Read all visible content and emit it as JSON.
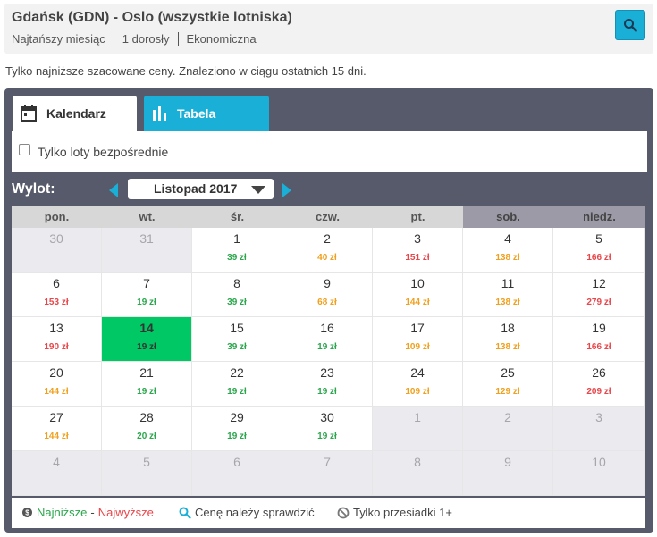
{
  "search": {
    "title": "Gdańsk (GDN) - Oslo (wszystkie lotniska)",
    "period": "Najtańszy miesiąc",
    "passengers": "1 dorosły",
    "cabin": "Ekonomiczna"
  },
  "note": "Tylko najniższe szacowane ceny. Znaleziono w ciągu ostatnich 15 dni.",
  "tabs": {
    "calendar": "Kalendarz",
    "table": "Tabela"
  },
  "filter": {
    "direct_only": "Tylko loty bezpośrednie",
    "checked": false
  },
  "departure_label": "Wylot:",
  "month": "Listopad 2017",
  "weekdays": [
    "pon.",
    "wt.",
    "śr.",
    "czw.",
    "pt.",
    "sob.",
    "niedz."
  ],
  "colors": {
    "low": "#2aa64c",
    "mid": "#f0a01e",
    "high": "#e8464a",
    "selected": "#00c864",
    "accent": "#1aafd6"
  },
  "days": [
    {
      "d": "30",
      "p": "",
      "level": "",
      "other": true
    },
    {
      "d": "31",
      "p": "",
      "level": "",
      "other": true
    },
    {
      "d": "1",
      "p": "39 zł",
      "level": "low"
    },
    {
      "d": "2",
      "p": "40 zł",
      "level": "mid"
    },
    {
      "d": "3",
      "p": "151 zł",
      "level": "high"
    },
    {
      "d": "4",
      "p": "138 zł",
      "level": "mid"
    },
    {
      "d": "5",
      "p": "166 zł",
      "level": "high"
    },
    {
      "d": "6",
      "p": "153 zł",
      "level": "high"
    },
    {
      "d": "7",
      "p": "19 zł",
      "level": "low"
    },
    {
      "d": "8",
      "p": "39 zł",
      "level": "low"
    },
    {
      "d": "9",
      "p": "68 zł",
      "level": "mid"
    },
    {
      "d": "10",
      "p": "144 zł",
      "level": "mid"
    },
    {
      "d": "11",
      "p": "138 zł",
      "level": "mid"
    },
    {
      "d": "12",
      "p": "279 zł",
      "level": "high"
    },
    {
      "d": "13",
      "p": "190 zł",
      "level": "high"
    },
    {
      "d": "14",
      "p": "19 zł",
      "level": "low",
      "selected": true
    },
    {
      "d": "15",
      "p": "39 zł",
      "level": "low"
    },
    {
      "d": "16",
      "p": "19 zł",
      "level": "low"
    },
    {
      "d": "17",
      "p": "109 zł",
      "level": "mid"
    },
    {
      "d": "18",
      "p": "138 zł",
      "level": "mid"
    },
    {
      "d": "19",
      "p": "166 zł",
      "level": "high"
    },
    {
      "d": "20",
      "p": "144 zł",
      "level": "mid"
    },
    {
      "d": "21",
      "p": "19 zł",
      "level": "low"
    },
    {
      "d": "22",
      "p": "19 zł",
      "level": "low"
    },
    {
      "d": "23",
      "p": "19 zł",
      "level": "low"
    },
    {
      "d": "24",
      "p": "109 zł",
      "level": "mid"
    },
    {
      "d": "25",
      "p": "129 zł",
      "level": "mid"
    },
    {
      "d": "26",
      "p": "209 zł",
      "level": "high"
    },
    {
      "d": "27",
      "p": "144 zł",
      "level": "mid"
    },
    {
      "d": "28",
      "p": "20 zł",
      "level": "low"
    },
    {
      "d": "29",
      "p": "19 zł",
      "level": "low"
    },
    {
      "d": "30",
      "p": "19 zł",
      "level": "low"
    },
    {
      "d": "1",
      "p": "",
      "level": "",
      "other": true
    },
    {
      "d": "2",
      "p": "",
      "level": "",
      "other": true
    },
    {
      "d": "3",
      "p": "",
      "level": "",
      "other": true
    },
    {
      "d": "4",
      "p": "",
      "level": "",
      "other": true
    },
    {
      "d": "5",
      "p": "",
      "level": "",
      "other": true
    },
    {
      "d": "6",
      "p": "",
      "level": "",
      "other": true
    },
    {
      "d": "7",
      "p": "",
      "level": "",
      "other": true
    },
    {
      "d": "8",
      "p": "",
      "level": "",
      "other": true
    },
    {
      "d": "9",
      "p": "",
      "level": "",
      "other": true
    },
    {
      "d": "10",
      "p": "",
      "level": "",
      "other": true
    }
  ],
  "legend": {
    "lowest": "Najniższe",
    "separator": "-",
    "highest": "Najwyższe",
    "check_price": "Cenę należy sprawdzić",
    "stops_only": "Tylko przesiadki 1+"
  }
}
